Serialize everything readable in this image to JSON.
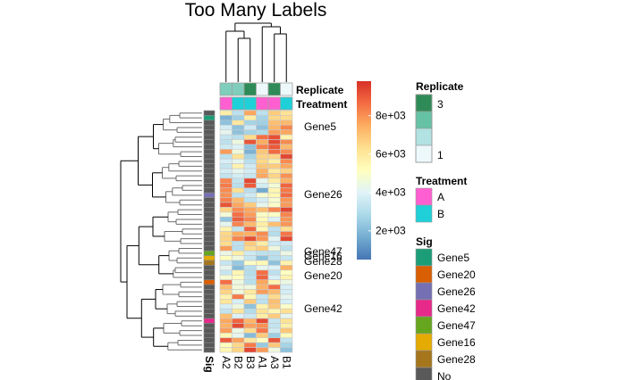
{
  "chart_data": {
    "type": "heatmap",
    "title": "Too Many Labels",
    "columns": [
      "A2",
      "B2",
      "B3",
      "A1",
      "A3",
      "B1"
    ],
    "column_annotations": {
      "Replicate": [
        2,
        2,
        3,
        1,
        3,
        1
      ],
      "Treatment": [
        "A",
        "B",
        "B",
        "A",
        "A",
        "B"
      ]
    },
    "annotation_labels": [
      "Replicate",
      "Treatment"
    ],
    "row_annotation_label": "Sig",
    "row_sig": [
      "No",
      "Gene5",
      "No",
      "No",
      "No",
      "No",
      "No",
      "No",
      "No",
      "No",
      "No",
      "No",
      "No",
      "No",
      "No",
      "No",
      "No",
      "Gene26",
      "No",
      "No",
      "No",
      "No",
      "No",
      "No",
      "No",
      "No",
      "No",
      "No",
      "No",
      "Gene47",
      "Gene16",
      "Gene28",
      "No",
      "No",
      "No",
      "Gene20",
      "No",
      "No",
      "No",
      "No",
      "No",
      "No",
      "No",
      "Gene42",
      "No",
      "No",
      "No",
      "No",
      "No",
      "No"
    ],
    "row_labels_shown": [
      {
        "label": "Gene5",
        "row": 1
      },
      {
        "label": "Gene26",
        "row": 17
      },
      {
        "label": "Gene47",
        "row": 29
      },
      {
        "label": "Gene16",
        "row": 30
      },
      {
        "label": "Gene28",
        "row": 31
      },
      {
        "label": "Gene20",
        "row": 35
      },
      {
        "label": "Gene42",
        "row": 43
      }
    ],
    "values": [
      [
        5800,
        3200,
        7600,
        3200,
        6800,
        6200
      ],
      [
        1800,
        2600,
        5800,
        2700,
        6500,
        6400
      ],
      [
        2200,
        6000,
        2700,
        2600,
        7100,
        7200
      ],
      [
        3700,
        2200,
        3600,
        2200,
        7300,
        8200
      ],
      [
        4200,
        2200,
        2700,
        2900,
        7800,
        7600
      ],
      [
        3400,
        3100,
        6400,
        8600,
        9200,
        5600
      ],
      [
        3200,
        4500,
        9100,
        7500,
        9300,
        8100
      ],
      [
        3600,
        3900,
        2200,
        8300,
        9000,
        7200
      ],
      [
        7800,
        4600,
        1800,
        6900,
        8700,
        8100
      ],
      [
        3200,
        6200,
        2700,
        6600,
        6600,
        9400
      ],
      [
        3800,
        4200,
        3100,
        6500,
        5700,
        8100
      ],
      [
        3400,
        5600,
        3600,
        6900,
        6800,
        7600
      ],
      [
        3700,
        4200,
        3700,
        7400,
        5900,
        6600
      ],
      [
        3300,
        3700,
        3400,
        7600,
        6600,
        8000
      ],
      [
        8200,
        3300,
        9300,
        4200,
        5800,
        7400
      ],
      [
        8400,
        3100,
        9000,
        3700,
        4700,
        8800
      ],
      [
        8100,
        6300,
        3100,
        1600,
        5500,
        8400
      ],
      [
        8000,
        3200,
        3600,
        4800,
        5400,
        8700
      ],
      [
        8300,
        7200,
        3200,
        3700,
        4800,
        7900
      ],
      [
        9100,
        7600,
        6800,
        4200,
        5000,
        7800
      ],
      [
        6600,
        8100,
        7600,
        7100,
        8200,
        9400
      ],
      [
        4700,
        8600,
        7800,
        5000,
        5000,
        8200
      ],
      [
        2300,
        8900,
        8200,
        5300,
        3900,
        7900
      ],
      [
        4200,
        8200,
        7200,
        5800,
        7100,
        7900
      ],
      [
        5600,
        3300,
        8800,
        5400,
        3200,
        6300
      ],
      [
        6500,
        7500,
        7400,
        8100,
        3000,
        8500
      ],
      [
        6600,
        8200,
        9200,
        7900,
        4100,
        9300
      ],
      [
        6400,
        3200,
        6800,
        5800,
        3500,
        3600
      ],
      [
        7800,
        3100,
        6400,
        6800,
        4500,
        3200
      ],
      [
        4400,
        5800,
        3600,
        3200,
        3200,
        4400
      ],
      [
        5100,
        4500,
        3400,
        2200,
        3100,
        3400
      ],
      [
        3400,
        2400,
        5000,
        5400,
        2200,
        5600
      ],
      [
        4200,
        2000,
        3100,
        4200,
        3900,
        7400
      ],
      [
        3400,
        5500,
        3000,
        8600,
        3200,
        5100
      ],
      [
        4800,
        5100,
        3200,
        8800,
        3800,
        5600
      ],
      [
        8600,
        4500,
        3100,
        7600,
        5500,
        4400
      ],
      [
        7100,
        4600,
        4500,
        7400,
        8600,
        3800
      ],
      [
        6600,
        4600,
        6000,
        7800,
        7200,
        3700
      ],
      [
        5600,
        8400,
        5400,
        3400,
        6400,
        4200
      ],
      [
        6100,
        3800,
        6800,
        3200,
        7100,
        3800
      ],
      [
        3800,
        4500,
        2200,
        5600,
        6900,
        5000
      ],
      [
        3300,
        6100,
        3000,
        6200,
        5500,
        6300
      ],
      [
        7100,
        3900,
        3500,
        5800,
        6800,
        4200
      ],
      [
        7600,
        8800,
        7300,
        9300,
        3400,
        6200
      ],
      [
        7400,
        9300,
        7700,
        8000,
        3300,
        5700
      ],
      [
        7800,
        4400,
        6400,
        8500,
        3600,
        6900
      ],
      [
        5400,
        4200,
        2000,
        6800,
        2500,
        5300
      ],
      [
        9000,
        7700,
        6000,
        5100,
        9100,
        3300
      ],
      [
        5200,
        6500,
        8400,
        2400,
        6900,
        2700
      ],
      [
        5500,
        6600,
        9400,
        7800,
        4500,
        2200
      ]
    ],
    "color_scale": {
      "min": 500,
      "max": 9800,
      "palette": [
        "#4575b4",
        "#74add1",
        "#abd9e9",
        "#e0f3f8",
        "#ffffbf",
        "#fee090",
        "#fdae61",
        "#f46d43",
        "#d73027"
      ],
      "ticks": [
        2000,
        4000,
        6000,
        8000
      ],
      "tick_labels": [
        "2e+03",
        "4e+03",
        "6e+03",
        "8e+03"
      ]
    },
    "legends": {
      "replicate": {
        "title": "Replicate",
        "colors": [
          "#2e8b57",
          "#66c2a4",
          "#b2e2e2",
          "#edf8fb"
        ],
        "labels": [
          "3",
          "",
          "",
          "1"
        ]
      },
      "treatment": {
        "title": "Treatment",
        "items": [
          {
            "label": "A",
            "color": "#ff5fd0"
          },
          {
            "label": "B",
            "color": "#1fd0d8"
          }
        ]
      },
      "sig": {
        "title": "Sig",
        "items": [
          {
            "label": "Gene5",
            "color": "#1b9e77"
          },
          {
            "label": "Gene20",
            "color": "#d95f02"
          },
          {
            "label": "Gene26",
            "color": "#7570b3"
          },
          {
            "label": "Gene42",
            "color": "#e7298a"
          },
          {
            "label": "Gene47",
            "color": "#66a61e"
          },
          {
            "label": "Gene16",
            "color": "#e6ab02"
          },
          {
            "label": "Gene28",
            "color": "#a6761d"
          },
          {
            "label": "No",
            "color": "#595959"
          }
        ]
      }
    },
    "replicate_colors": {
      "1": "#edf8fb",
      "2": "#7fcdbb",
      "3": "#2e8b57"
    }
  }
}
